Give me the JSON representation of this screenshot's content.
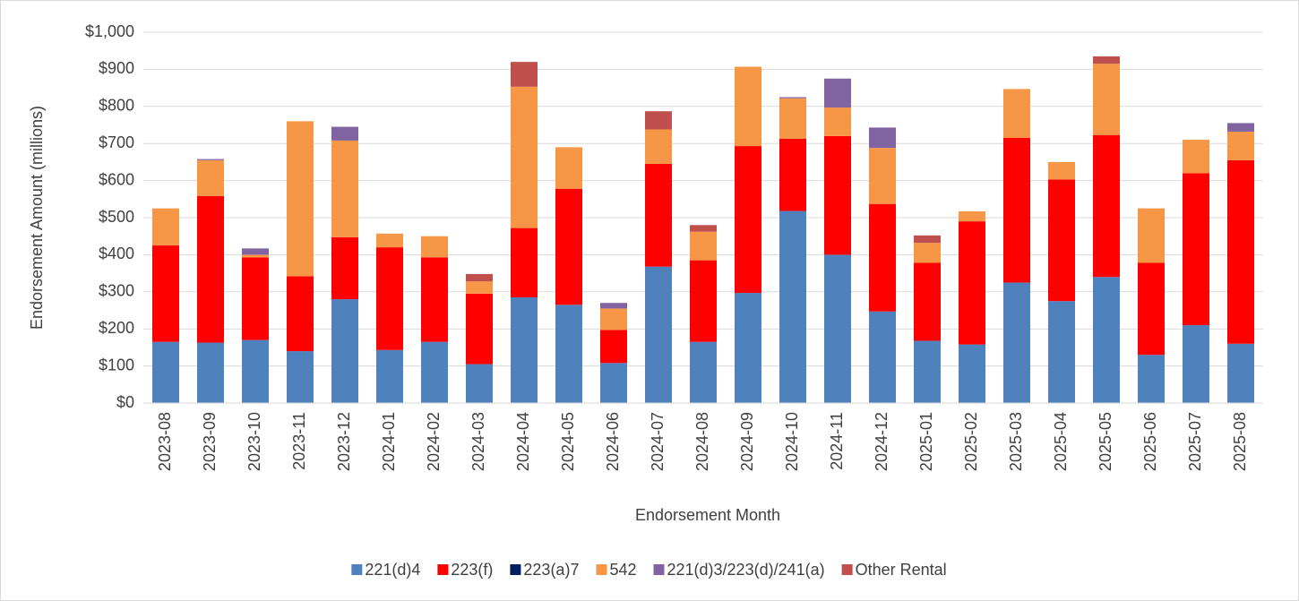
{
  "chart_data": {
    "type": "stacked-bar",
    "x_label": "Endorsement Month",
    "y_label": "Endorsement Amount (millions)",
    "categories": [
      "2023-08",
      "2023-09",
      "2023-10",
      "2023-11",
      "2023-12",
      "2024-01",
      "2024-02",
      "2024-03",
      "2024-04",
      "2024-05",
      "2024-06",
      "2024-07",
      "2024-08",
      "2024-09",
      "2024-10",
      "2024-11",
      "2024-12",
      "2025-01",
      "2025-02",
      "2025-03",
      "2025-04",
      "2025-05",
      "2025-06",
      "2025-07",
      "2025-08"
    ],
    "series": [
      {
        "name": "221(d)4",
        "color": "#4f81bd",
        "values": [
          165,
          163,
          170,
          140,
          280,
          143,
          165,
          105,
          285,
          265,
          108,
          368,
          165,
          297,
          518,
          400,
          247,
          168,
          158,
          325,
          275,
          340,
          130,
          210,
          160
        ]
      },
      {
        "name": "223(f)",
        "color": "#ff0000",
        "values": [
          260,
          395,
          223,
          202,
          167,
          277,
          228,
          190,
          187,
          313,
          89,
          277,
          220,
          396,
          195,
          320,
          290,
          210,
          332,
          390,
          328,
          383,
          248,
          410,
          495
        ]
      },
      {
        "name": "223(a)7",
        "color": "#002060",
        "values": [
          0,
          0,
          0,
          0,
          0,
          0,
          0,
          0,
          0,
          0,
          0,
          0,
          0,
          0,
          0,
          0,
          0,
          0,
          0,
          0,
          0,
          0,
          0,
          0,
          0
        ]
      },
      {
        "name": "542",
        "color": "#f79646",
        "values": [
          100,
          97,
          7,
          418,
          261,
          37,
          57,
          33,
          381,
          112,
          58,
          93,
          77,
          214,
          109,
          77,
          151,
          54,
          27,
          132,
          47,
          192,
          147,
          90,
          77
        ]
      },
      {
        "name": "221(d)3/223(d)/241(a)",
        "color": "#8064a2",
        "values": [
          0,
          3,
          17,
          0,
          37,
          0,
          0,
          0,
          0,
          0,
          15,
          0,
          0,
          0,
          3,
          78,
          55,
          0,
          0,
          0,
          0,
          0,
          0,
          0,
          23
        ]
      },
      {
        "name": "Other Rental",
        "color": "#c0504d",
        "values": [
          0,
          0,
          0,
          0,
          0,
          0,
          0,
          20,
          67,
          0,
          0,
          49,
          18,
          0,
          0,
          0,
          0,
          20,
          0,
          0,
          0,
          20,
          0,
          0,
          0
        ]
      }
    ],
    "ylim": [
      0,
      1000
    ],
    "yticks": [
      {
        "value": 0,
        "label": "$0"
      },
      {
        "value": 100,
        "label": "$100"
      },
      {
        "value": 200,
        "label": "$200"
      },
      {
        "value": 300,
        "label": "$300"
      },
      {
        "value": 400,
        "label": "$400"
      },
      {
        "value": 500,
        "label": "$500"
      },
      {
        "value": 600,
        "label": "$600"
      },
      {
        "value": 700,
        "label": "$700"
      },
      {
        "value": 800,
        "label": "$800"
      },
      {
        "value": 900,
        "label": "$900"
      },
      {
        "value": 1000,
        "label": "$1,000"
      }
    ],
    "grid": true,
    "legend": "bottom"
  }
}
